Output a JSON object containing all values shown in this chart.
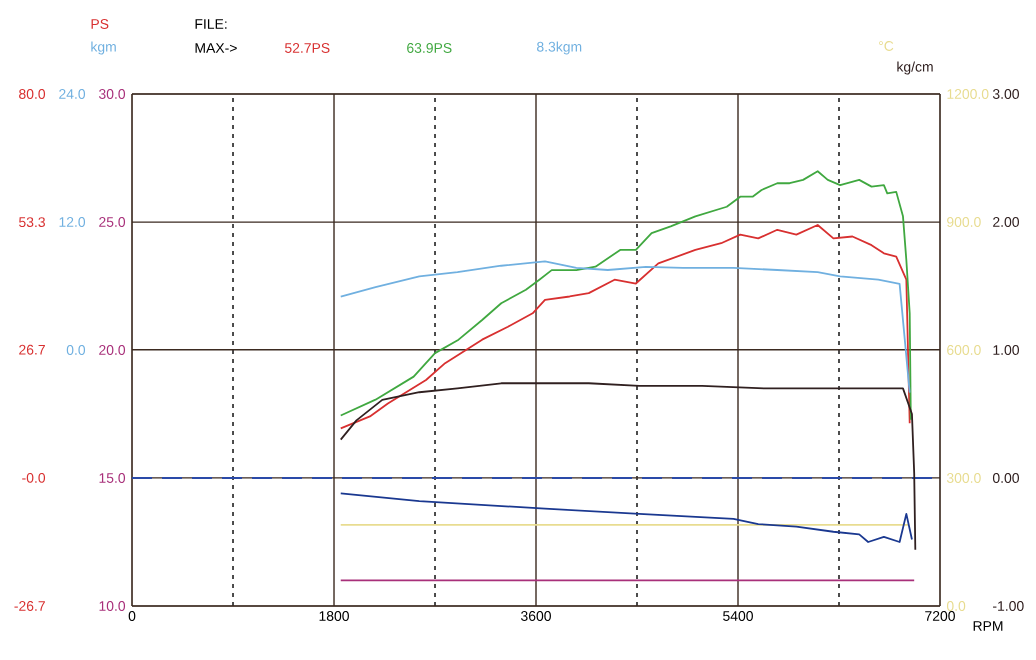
{
  "chart_data": [
    {
      "type": "line",
      "xlabel": "RPM",
      "ylabel": "PS",
      "y3label": "kgm",
      "y2label": "°C",
      "annotations": [
        "FILE:",
        "MAX->"
      ],
      "xlim": [
        0,
        7200
      ],
      "xticks": [
        0,
        1800,
        3600,
        5400,
        7200
      ],
      "ylim": [
        -26.7,
        80
      ],
      "yticks": [
        {
          "value": 80,
          "label": "80.0"
        },
        {
          "value": 53.3,
          "label": "53.3"
        },
        {
          "value": 26.7,
          "label": "26.7"
        },
        {
          "value": 0,
          "label": "-0.0"
        },
        {
          "value": -26.7,
          "label": "-26.7"
        }
      ],
      "y3lim": [
        -24,
        24
      ],
      "y3ticks": [
        {
          "value": 24,
          "label": "24.0"
        },
        {
          "value": 12,
          "label": "12.0"
        },
        {
          "value": 0,
          "label": "0.0"
        },
        {
          "value": -24,
          "label": null
        }
      ],
      "y2lim": [
        0,
        1200
      ],
      "y2ticks": [
        {
          "value": 1200,
          "label": "1200.0"
        },
        {
          "value": 900,
          "label": "900.0"
        },
        {
          "value": 600,
          "label": "600.0"
        },
        {
          "value": 300,
          "label": "300.0"
        },
        {
          "value": 0,
          "label": "0.0"
        }
      ],
      "grid": true,
      "series": [
        {
          "name": "52.7PS",
          "color": "#d83030",
          "x": [
            1860,
            2120,
            2280,
            2620,
            2790,
            3120,
            3350,
            3570,
            3680,
            3900,
            4070,
            4300,
            4490,
            4690,
            5020,
            5250,
            5420,
            5580,
            5750,
            5920,
            6110,
            6250,
            6420,
            6590,
            6700,
            6810,
            6900,
            6930
          ],
          "values": [
            10.3,
            12.8,
            15.5,
            20.4,
            23.9,
            28.8,
            31.5,
            34.3,
            37.1,
            37.8,
            38.5,
            41.3,
            40.5,
            44.7,
            47.5,
            48.9,
            50.7,
            49.9,
            51.7,
            50.7,
            52.7,
            49.9,
            50.3,
            48.5,
            46.8,
            46.1,
            41.3,
            11.4
          ]
        },
        {
          "name": "63.9PS",
          "color": "#40a840",
          "x": [
            1860,
            2170,
            2510,
            2700,
            2910,
            3120,
            3290,
            3510,
            3630,
            3740,
            3960,
            4130,
            4350,
            4490,
            4630,
            4800,
            5020,
            5300,
            5420,
            5530,
            5610,
            5750,
            5860,
            5980,
            6110,
            6200,
            6310,
            6480,
            6590,
            6700,
            6730,
            6810,
            6870,
            6900,
            6930,
            6940
          ],
          "values": [
            13.0,
            16.3,
            21.1,
            26.0,
            28.8,
            32.9,
            36.4,
            39.2,
            41.3,
            43.3,
            43.3,
            44.0,
            47.5,
            47.5,
            51.0,
            52.4,
            54.5,
            56.5,
            58.6,
            58.6,
            60.0,
            61.4,
            61.4,
            62.1,
            63.9,
            62.1,
            61.0,
            62.1,
            60.7,
            61.0,
            59.3,
            59.6,
            54.5,
            45.4,
            34.3,
            12.1
          ]
        },
        {
          "name": "8.3kgm",
          "color": "#70b0e0",
          "axis": "y3",
          "x": [
            1860,
            2170,
            2560,
            2900,
            3290,
            3680,
            3960,
            4240,
            4580,
            4910,
            5360,
            5750,
            6110,
            6310,
            6650,
            6840,
            6930
          ],
          "values": [
            5.0,
            5.9,
            6.9,
            7.3,
            7.9,
            8.3,
            7.7,
            7.5,
            7.8,
            7.7,
            7.7,
            7.5,
            7.3,
            6.9,
            6.6,
            6.2,
            -4.0
          ]
        },
        {
          "color": "#e8dc90",
          "axis": "y2",
          "x": [
            1860,
            6920
          ],
          "values": [
            190,
            190
          ]
        }
      ]
    },
    {
      "type": "line",
      "tick_labels": "y",
      "y2label": "kg/cm",
      "xlim": [
        0,
        7200
      ],
      "ylim": [
        10,
        30
      ],
      "yticks": [
        {
          "value": 30,
          "label": "30.0"
        },
        {
          "value": 25,
          "label": "25.0"
        },
        {
          "value": 20,
          "label": "20.0"
        },
        {
          "value": 15,
          "label": "15.0"
        },
        {
          "value": 10,
          "label": "10.0"
        }
      ],
      "y2lim": [
        -1,
        3
      ],
      "y2ticks": [
        {
          "value": 3,
          "label": "3.00"
        },
        {
          "value": 2,
          "label": "2.00"
        },
        {
          "value": 1,
          "label": "1.00"
        },
        {
          "value": 0,
          "label": "0.00"
        },
        {
          "value": -1,
          "label": "-1.00"
        }
      ],
      "ref_lines": [
        {
          "axis": "y2",
          "value": 0,
          "color": "#2a4aa8",
          "line_style": "dashed"
        }
      ],
      "series": [
        {
          "color": "#a8307a",
          "x": [
            1860,
            6970
          ],
          "values": [
            11.0,
            11.0
          ]
        },
        {
          "color": "#1a3890",
          "x": [
            1860,
            2560,
            3680,
            4520,
            5360,
            5580,
            5920,
            6250,
            6480,
            6560,
            6700,
            6840,
            6900,
            6950
          ],
          "values": [
            14.4,
            14.1,
            13.8,
            13.6,
            13.4,
            13.2,
            13.1,
            12.9,
            12.8,
            12.5,
            12.7,
            12.5,
            13.6,
            12.6
          ]
        },
        {
          "color": "#302020",
          "axis": "y2",
          "x": [
            1860,
            2000,
            2230,
            2560,
            2900,
            3290,
            3680,
            4070,
            4520,
            5080,
            5640,
            6200,
            6870,
            6950,
            6970,
            6980
          ],
          "values": [
            0.3,
            0.45,
            0.61,
            0.67,
            0.7,
            0.74,
            0.74,
            0.74,
            0.72,
            0.72,
            0.7,
            0.7,
            0.7,
            0.5,
            0.04,
            -0.56
          ]
        }
      ]
    }
  ]
}
